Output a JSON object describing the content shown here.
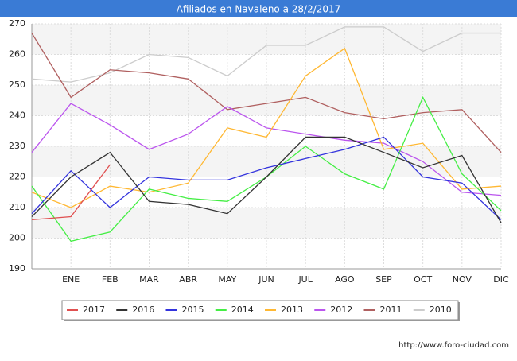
{
  "chart_data": {
    "type": "line",
    "title": "Afiliados en Navaleno a 28/2/2017",
    "categories": [
      null,
      "ENE",
      "FEB",
      "MAR",
      "ABR",
      "MAY",
      "JUN",
      "JUL",
      "AGO",
      "SEP",
      "OCT",
      "NOV",
      "DIC"
    ],
    "ylim": [
      190,
      270
    ],
    "yticks": [
      190,
      200,
      210,
      220,
      230,
      240,
      250,
      260,
      270
    ],
    "grid": true,
    "series": [
      {
        "name": "2017",
        "color": "#e05050",
        "values": [
          206,
          207,
          224,
          null,
          null,
          null,
          null,
          null,
          null,
          null,
          null,
          null,
          null
        ]
      },
      {
        "name": "2016",
        "color": "#333333",
        "values": [
          207,
          220,
          228,
          212,
          211,
          208,
          220,
          233,
          233,
          228,
          223,
          227,
          205
        ]
      },
      {
        "name": "2015",
        "color": "#3333dd",
        "values": [
          208,
          222,
          210,
          220,
          219,
          219,
          223,
          226,
          229,
          233,
          220,
          218,
          206
        ]
      },
      {
        "name": "2014",
        "color": "#44ee44",
        "values": [
          217,
          199,
          202,
          216,
          213,
          212,
          220,
          230,
          221,
          216,
          246,
          221,
          209
        ]
      },
      {
        "name": "2013",
        "color": "#ffb833",
        "values": [
          215,
          210,
          217,
          215,
          218,
          236,
          233,
          253,
          262,
          229,
          231,
          216,
          217
        ]
      },
      {
        "name": "2012",
        "color": "#bb55ee",
        "values": [
          228,
          244,
          237,
          229,
          234,
          243,
          236,
          234,
          232,
          231,
          225,
          215,
          214
        ]
      },
      {
        "name": "2011",
        "color": "#b06060",
        "values": [
          267,
          246,
          255,
          254,
          252,
          242,
          244,
          246,
          241,
          239,
          241,
          242,
          228
        ]
      },
      {
        "name": "2010",
        "color": "#cccccc",
        "values": [
          252,
          251,
          254,
          260,
          259,
          253,
          263,
          263,
          269,
          269,
          261,
          267,
          267
        ]
      }
    ],
    "source": "http://www.foro-ciudad.com"
  }
}
